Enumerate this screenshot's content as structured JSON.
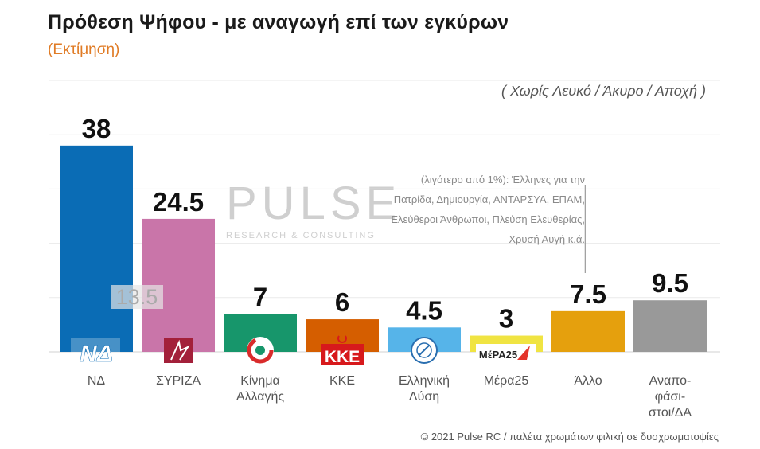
{
  "title": "Πρόθεση Ψήφου - με αναγωγή επί των εγκύρων",
  "subtitle": "(Εκτίμηση)",
  "note": "( Χωρίς Λευκό / Άκυρο / Αποχή )",
  "footer": "© 2021 Pulse RC  /  παλέτα χρωμάτων φιλική σε δυσχρωματοψίες",
  "watermark": {
    "main": "PULSE",
    "sub": "RESEARCH & CONSULTING"
  },
  "annotation": "(λιγότερο από 1%): Έλληνες για την Πατρίδα, Δημιουργία, ΑΝΤΑΡΣΥΑ, ΕΠΑΜ, Ελεύθεροι Άνθρωποι, Πλεύση Ελευθερίας, Χρυσή Αυγή κ.ά.",
  "secondary_value": "13.5",
  "logos": {
    "nd": "ΝΔ",
    "kke": "ΚΚΕ",
    "mera": "ΜέΡΑ25"
  },
  "chart_data": {
    "type": "bar",
    "title": "Πρόθεση Ψήφου - με αναγωγή επί των εγκύρων",
    "subtitle": "(Εκτίμηση)",
    "xlabel": "",
    "ylabel": "",
    "ylim": [
      0,
      50
    ],
    "grid": true,
    "categories": [
      "ΝΔ",
      "ΣΥΡΙΖΑ",
      "Κίνημα Αλλαγής",
      "ΚΚΕ",
      "Ελληνική Λύση",
      "Μέρα25",
      "Άλλο",
      "Αναπο-φάσι-στοι/ΔΑ"
    ],
    "category_lines": [
      [
        "ΝΔ"
      ],
      [
        "ΣΥΡΙΖΑ"
      ],
      [
        "Κίνημα",
        "Αλλαγής"
      ],
      [
        "ΚΚΕ"
      ],
      [
        "Ελληνική",
        "Λύση"
      ],
      [
        "Μέρα25"
      ],
      [
        "Άλλο"
      ],
      [
        "Αναπο-",
        "φάσι-",
        "στοι/ΔΑ"
      ]
    ],
    "values": [
      38,
      24.5,
      7,
      6,
      4.5,
      3,
      7.5,
      9.5
    ],
    "value_labels": [
      "38",
      "24.5",
      "7",
      "6",
      "4.5",
      "3",
      "7.5",
      "9.5"
    ],
    "colors": [
      "#0a6cb5",
      "#c975a9",
      "#17966b",
      "#d55e00",
      "#56b4e9",
      "#f0e442",
      "#e5a00d",
      "#999999"
    ],
    "logo_icons": [
      "nd-logo-icon",
      "syriza-logo-icon",
      "kinal-logo-icon",
      "kke-logo-icon",
      "elliniki-lysi-logo-icon",
      "mera25-logo-icon",
      "",
      ""
    ]
  }
}
